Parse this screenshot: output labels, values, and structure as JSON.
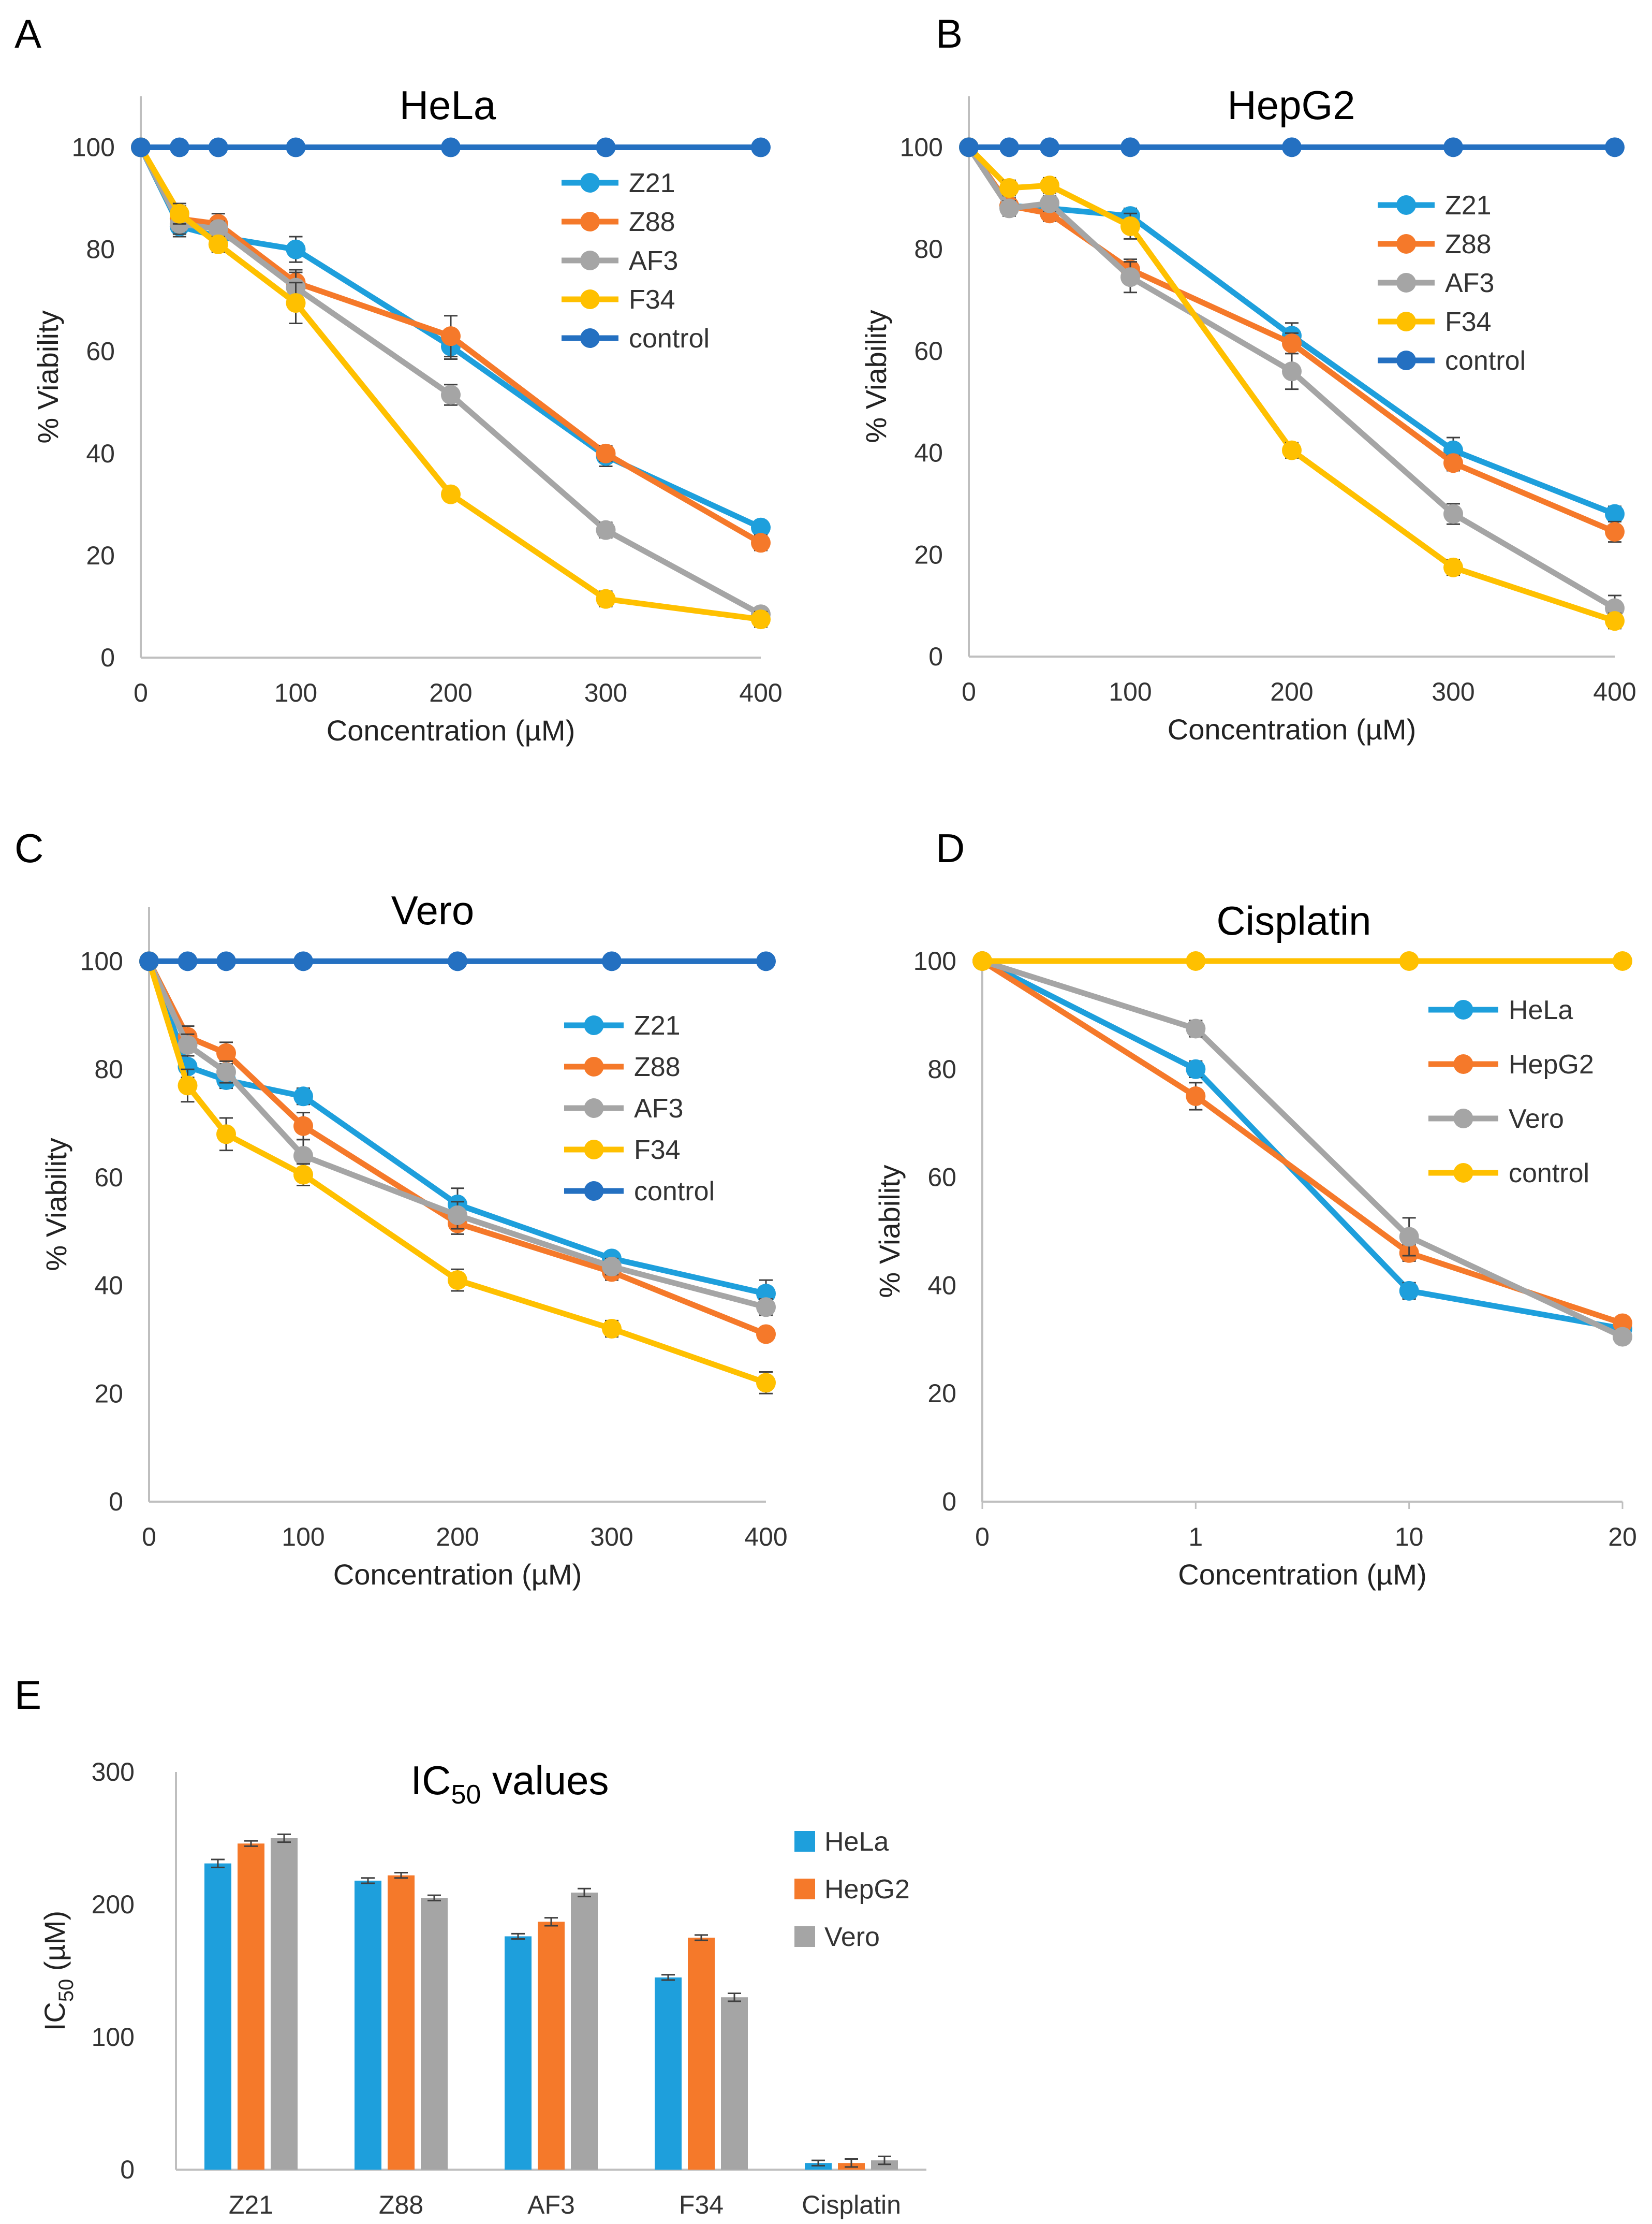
{
  "figure": {
    "panels": [
      "A",
      "B",
      "C",
      "D",
      "E"
    ]
  },
  "colors": {
    "Z21": "#1e9fdc",
    "Z88": "#f5792a",
    "AF3": "#a5a5a5",
    "F34": "#ffc000",
    "control": "#2470c1",
    "cisplatin_control": "#ffc000",
    "HeLa": "#1e9fdc",
    "HepG2": "#f5792a",
    "Vero": "#a5a5a5",
    "error_bar": "#404040",
    "axis": "#bfbfbf"
  },
  "chart_data": [
    {
      "panel": "A",
      "type": "line",
      "title": "HeLa",
      "xlabel": "Concentration (µM)",
      "ylabel": "% Viability",
      "x": [
        0,
        25,
        50,
        100,
        200,
        300,
        400
      ],
      "xticks": [
        0,
        100,
        200,
        300,
        400
      ],
      "ylim": [
        0,
        110
      ],
      "yticks": [
        0,
        20,
        40,
        60,
        80,
        100
      ],
      "legend": [
        "Z21",
        "Z88",
        "AF3",
        "F34",
        "control"
      ],
      "series": [
        {
          "name": "Z21",
          "values": [
            100,
            84.5,
            82.5,
            80,
            61,
            39.5,
            25.5
          ],
          "errors": [
            0,
            2,
            1.5,
            2.5,
            2.5,
            2,
            1
          ]
        },
        {
          "name": "Z88",
          "values": [
            100,
            86,
            85,
            73.5,
            63,
            40,
            22.5
          ],
          "errors": [
            0,
            2.5,
            2,
            2.5,
            4,
            1.5,
            1.5
          ]
        },
        {
          "name": "AF3",
          "values": [
            100,
            85,
            84,
            72.5,
            51.5,
            25,
            8.5
          ],
          "errors": [
            0,
            2,
            1.5,
            3,
            2,
            1.5,
            1
          ]
        },
        {
          "name": "F34",
          "values": [
            100,
            87,
            81,
            69.5,
            32,
            11.5,
            7.5
          ],
          "errors": [
            0,
            2,
            1.5,
            4,
            1,
            1.5,
            1.5
          ]
        },
        {
          "name": "control",
          "values": [
            100,
            100,
            100,
            100,
            100,
            100,
            100
          ],
          "errors": [
            0,
            0,
            0,
            0,
            0,
            0,
            0
          ]
        }
      ]
    },
    {
      "panel": "B",
      "type": "line",
      "title": "HepG2",
      "xlabel": "Concentration (µM)",
      "ylabel": "% Viability",
      "x": [
        0,
        25,
        50,
        100,
        200,
        300,
        400
      ],
      "xticks": [
        0,
        100,
        200,
        300,
        400
      ],
      "ylim": [
        0,
        110
      ],
      "yticks": [
        0,
        20,
        40,
        60,
        80,
        100
      ],
      "legend": [
        "Z21",
        "Z88",
        "AF3",
        "F34",
        "control"
      ],
      "series": [
        {
          "name": "Z21",
          "values": [
            100,
            88.5,
            88,
            86.5,
            63,
            40.5,
            28
          ],
          "errors": [
            0,
            1.5,
            1.5,
            1.5,
            2.5,
            2.5,
            1.5
          ]
        },
        {
          "name": "Z88",
          "values": [
            100,
            88.5,
            87,
            76,
            61.5,
            38,
            24.5
          ],
          "errors": [
            0,
            1.5,
            1.5,
            2,
            2,
            1.5,
            2
          ]
        },
        {
          "name": "AF3",
          "values": [
            100,
            88,
            89,
            74.5,
            56,
            28,
            9.5
          ],
          "errors": [
            0,
            1.5,
            1.5,
            3,
            3.5,
            2,
            2.5
          ]
        },
        {
          "name": "F34",
          "values": [
            100,
            92,
            92.5,
            84.5,
            40.5,
            17.5,
            7
          ],
          "errors": [
            0,
            1.5,
            1.5,
            2.5,
            1.5,
            1.5,
            1.5
          ]
        },
        {
          "name": "control",
          "values": [
            100,
            100,
            100,
            100,
            100,
            100,
            100
          ],
          "errors": [
            0,
            0,
            0,
            0,
            0,
            0,
            0
          ]
        }
      ]
    },
    {
      "panel": "C",
      "type": "line",
      "title": "Vero",
      "xlabel": "Concentration (µM)",
      "ylabel": "% Viability",
      "x": [
        0,
        25,
        50,
        100,
        200,
        300,
        400
      ],
      "xticks": [
        0,
        100,
        200,
        300,
        400
      ],
      "ylim": [
        0,
        110
      ],
      "yticks": [
        0,
        20,
        40,
        60,
        80,
        100
      ],
      "legend": [
        "Z21",
        "Z88",
        "AF3",
        "F34",
        "control"
      ],
      "series": [
        {
          "name": "Z21",
          "values": [
            100,
            80.5,
            78,
            75,
            55,
            45,
            38.5
          ],
          "errors": [
            0,
            2,
            1.5,
            1.5,
            3,
            1,
            2.5
          ]
        },
        {
          "name": "Z88",
          "values": [
            100,
            86,
            83,
            69.5,
            51.5,
            42.5,
            31
          ],
          "errors": [
            0,
            2,
            2,
            2.5,
            2,
            1.5,
            1
          ]
        },
        {
          "name": "AF3",
          "values": [
            100,
            84.5,
            79.5,
            64,
            53,
            43.5,
            36
          ],
          "errors": [
            0,
            2,
            2,
            3,
            2.5,
            1.5,
            1.5
          ]
        },
        {
          "name": "F34",
          "values": [
            100,
            77,
            68,
            60.5,
            41,
            32,
            22
          ],
          "errors": [
            0,
            3,
            3,
            2,
            2,
            1.5,
            2
          ]
        },
        {
          "name": "control",
          "values": [
            100,
            100,
            100,
            100,
            100,
            100,
            100
          ],
          "errors": [
            0,
            0,
            0,
            0,
            0,
            0,
            0
          ]
        }
      ]
    },
    {
      "panel": "D",
      "type": "line",
      "title": "Cisplatin",
      "xlabel": "Concentration (µM)",
      "ylabel": "% Viability",
      "categories": [
        "0",
        "1",
        "10",
        "20"
      ],
      "ylim": [
        0,
        100
      ],
      "yticks": [
        0,
        20,
        40,
        60,
        80,
        100
      ],
      "legend": [
        "HeLa",
        "HepG2",
        "Vero",
        "control"
      ],
      "series": [
        {
          "name": "HeLa",
          "values": [
            100,
            80,
            39,
            32
          ],
          "errors": [
            0,
            1.5,
            1.5,
            1
          ]
        },
        {
          "name": "HepG2",
          "values": [
            100,
            75,
            46,
            33
          ],
          "errors": [
            0,
            2.5,
            1.5,
            1
          ]
        },
        {
          "name": "Vero",
          "values": [
            100,
            87.5,
            49,
            30.5
          ],
          "errors": [
            0,
            1.5,
            3.5,
            1
          ]
        },
        {
          "name": "control",
          "values": [
            100,
            100,
            100,
            100
          ],
          "errors": [
            0,
            0,
            0,
            0
          ]
        }
      ]
    },
    {
      "panel": "E",
      "type": "bar",
      "title": "IC",
      "title_subscript": "50",
      "title_suffix": " values",
      "xlabel": "",
      "ylabel": "IC",
      "ylabel_subscript": "50",
      "ylabel_suffix": " (µM)",
      "categories": [
        "Z21",
        "Z88",
        "AF3",
        "F34",
        "Cisplatin"
      ],
      "ylim": [
        0,
        300
      ],
      "yticks": [
        0,
        100,
        200,
        300
      ],
      "legend": [
        "HeLa",
        "HepG2",
        "Vero"
      ],
      "series": [
        {
          "name": "HeLa",
          "values": [
            231,
            218,
            176,
            145,
            5
          ],
          "errors": [
            3,
            2,
            2,
            2,
            2
          ]
        },
        {
          "name": "HepG2",
          "values": [
            246,
            222,
            187,
            175,
            5
          ],
          "errors": [
            2,
            2,
            3,
            2,
            3
          ]
        },
        {
          "name": "Vero",
          "values": [
            250,
            205,
            209,
            130,
            7
          ],
          "errors": [
            3,
            2,
            3,
            3,
            3
          ]
        }
      ]
    }
  ]
}
